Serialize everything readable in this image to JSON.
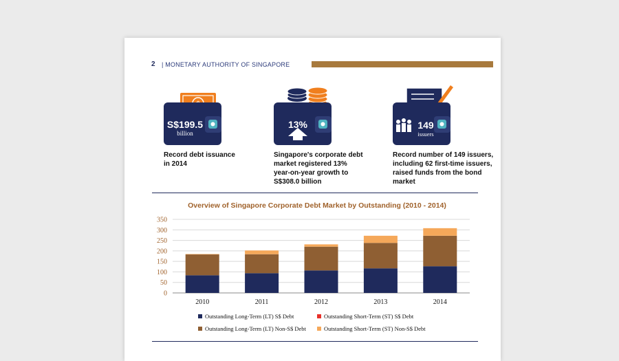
{
  "header": {
    "page_number": "2",
    "organization": "| MONETARY AUTHORITY OF SINGAPORE"
  },
  "highlights": [
    {
      "icon": "money-wallet-icon",
      "value": "S$199.5",
      "unit": "billion",
      "caption_lines": [
        "Record debt issuance",
        "in 2014"
      ]
    },
    {
      "icon": "coins-wallet-icon",
      "value": "13%",
      "unit": "",
      "caption_lines": [
        "Singapore's corporate debt",
        "market registered 13%",
        "year-on-year growth to",
        "S$308.0 billion"
      ]
    },
    {
      "icon": "issuers-wallet-icon",
      "value": "149",
      "unit": "issuers",
      "caption_lines": [
        "Record number of 149 issuers,",
        "including 62 first-time issuers,",
        "raised funds from the bond",
        "market"
      ]
    }
  ],
  "colors": {
    "navy": "#1f2a5c",
    "orange": "#f07f1e",
    "brown": "#a87a3d",
    "brown_series": "#8f5f33",
    "light_orange": "#f5a85a",
    "red": "#e8312a"
  },
  "chart_data": {
    "type": "bar",
    "stacked": true,
    "title": "Overview of Singapore Corporate Debt Market by Outstanding (2010 - 2014)",
    "categories": [
      "2010",
      "2011",
      "2012",
      "2013",
      "2014"
    ],
    "series": [
      {
        "name": "Outstanding Long-Term (LT) S$ Debt",
        "color": "#1f2a5c",
        "values": [
          84,
          94,
          107,
          117,
          127
        ]
      },
      {
        "name": "Outstanding Short-Term (ST) S$ Debt",
        "color": "#e8312a",
        "values": [
          0,
          0,
          0,
          0,
          0
        ]
      },
      {
        "name": "Outstanding Long-Term (LT) Non-S$ Debt",
        "color": "#8f5f33",
        "values": [
          99,
          90,
          113,
          121,
          145
        ]
      },
      {
        "name": "Outstanding Short-Term (ST) Non-S$ Debt",
        "color": "#f5a85a",
        "values": [
          2,
          18,
          11,
          34,
          36
        ]
      }
    ],
    "ylim": [
      0,
      350
    ],
    "yticks": [
      "0",
      "50",
      "100",
      "150",
      "200",
      "250",
      "300",
      "350"
    ],
    "grid": true,
    "legend_position": "bottom"
  }
}
